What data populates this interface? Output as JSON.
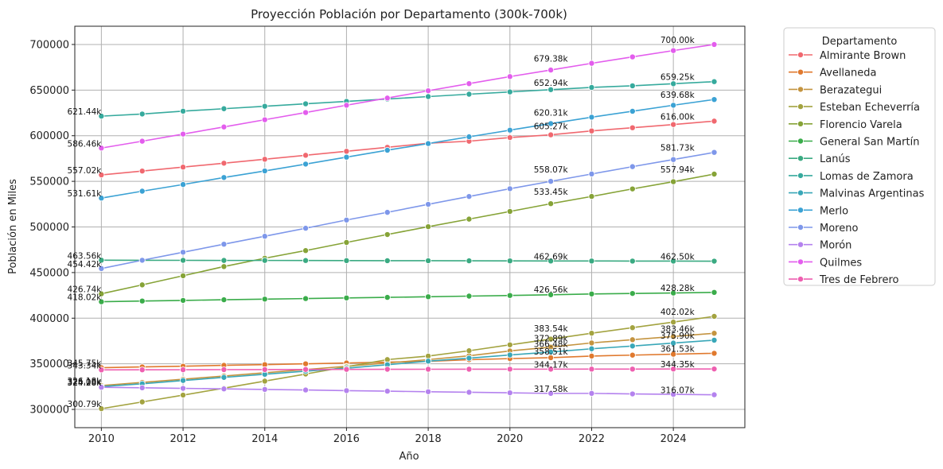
{
  "chart_data": {
    "type": "line",
    "title": "Proyección Población por Departamento (300k-700k)",
    "xlabel": "Año",
    "ylabel": "Población en Miles",
    "xlim": [
      2009.35,
      2025.75
    ],
    "ylim": [
      280000,
      720000
    ],
    "xticks": [
      2010,
      2012,
      2014,
      2016,
      2018,
      2020,
      2022,
      2024
    ],
    "yticks": [
      300000,
      350000,
      400000,
      450000,
      500000,
      550000,
      600000,
      650000,
      700000
    ],
    "x": [
      2010,
      2011,
      2012,
      2013,
      2014,
      2015,
      2016,
      2017,
      2018,
      2019,
      2020,
      2021,
      2022,
      2023,
      2024,
      2025
    ],
    "grid": true,
    "legend": {
      "title": "Departamento",
      "position": "outside-right"
    },
    "series": [
      {
        "name": "Almirante Brown",
        "color": "#f0686f",
        "values": [
          557020,
          561290,
          565580,
          569890,
          574210,
          578560,
          582930,
          587320,
          591730,
          594000,
          598000,
          601000,
          605270,
          608750,
          612260,
          616000
        ]
      },
      {
        "name": "Avellaneda",
        "color": "#e0792e",
        "values": [
          345750,
          346600,
          347400,
          348300,
          349100,
          350000,
          350900,
          351800,
          352700,
          354500,
          355700,
          356700,
          358510,
          359500,
          360500,
          361530
        ]
      },
      {
        "name": "Berazategui",
        "color": "#c49440",
        "values": [
          326180,
          329600,
          333100,
          336600,
          340200,
          343700,
          347300,
          350900,
          354600,
          358800,
          364100,
          368300,
          372890,
          376400,
          379900,
          383460
        ]
      },
      {
        "name": "Esteban Echeverría",
        "color": "#a3a340",
        "values": [
          300790,
          308200,
          315700,
          323300,
          331000,
          338800,
          346700,
          354600,
          358500,
          364300,
          370800,
          377100,
          383540,
          389600,
          395700,
          402020
        ]
      },
      {
        "name": "Florencio Varela",
        "color": "#86a337",
        "values": [
          426740,
          436500,
          446500,
          456600,
          465700,
          474100,
          483000,
          491700,
          500300,
          508600,
          517000,
          525500,
          533450,
          541700,
          549600,
          557940
        ]
      },
      {
        "name": "General San Martín",
        "color": "#3aac4a",
        "values": [
          418020,
          418800,
          419500,
          420200,
          420900,
          421500,
          422200,
          422800,
          423500,
          424200,
          424900,
          425700,
          426560,
          427100,
          427600,
          428280
        ]
      },
      {
        "name": "Lanús",
        "color": "#3aaa82",
        "values": [
          463560,
          463500,
          463400,
          463300,
          463300,
          463200,
          463100,
          463000,
          463000,
          462900,
          462800,
          462690,
          462690,
          462600,
          462550,
          462500
        ]
      },
      {
        "name": "Lomas de Zamora",
        "color": "#36aa9d",
        "values": [
          621440,
          623800,
          626900,
          629600,
          632300,
          635000,
          637600,
          640200,
          642900,
          645500,
          648000,
          650500,
          652940,
          654700,
          657000,
          659250
        ]
      },
      {
        "name": "Malvinas Argentinas",
        "color": "#39a7b8",
        "values": [
          325000,
          328100,
          331700,
          335100,
          338500,
          341900,
          345200,
          349000,
          352900,
          356200,
          359700,
          362900,
          366480,
          369500,
          372700,
          375900
        ]
      },
      {
        "name": "Merlo",
        "color": "#3ba2d4",
        "values": [
          531610,
          539200,
          546500,
          554200,
          561400,
          568900,
          576500,
          584100,
          591400,
          598800,
          606100,
          613300,
          620310,
          626800,
          633400,
          639680
        ]
      },
      {
        "name": "Moreno",
        "color": "#7e97ea",
        "values": [
          454420,
          463500,
          472300,
          481100,
          489800,
          498600,
          507600,
          516000,
          524800,
          533400,
          541900,
          550000,
          558070,
          566100,
          573900,
          581730
        ]
      },
      {
        "name": "Morón",
        "color": "#b482ee",
        "values": [
          324280,
          323700,
          323100,
          322500,
          321900,
          321300,
          320600,
          320000,
          319400,
          318800,
          318200,
          317580,
          317580,
          317000,
          316500,
          316070
        ]
      },
      {
        "name": "Quilmes",
        "color": "#e35ded",
        "values": [
          586460,
          594000,
          601800,
          609600,
          617500,
          625400,
          633400,
          641300,
          649300,
          657100,
          664800,
          672000,
          679380,
          686400,
          693300,
          700000
        ]
      },
      {
        "name": "Tres de Febrero",
        "color": "#ee5fb0",
        "values": [
          343340,
          343400,
          343500,
          343600,
          343700,
          343800,
          343900,
          344000,
          344050,
          344100,
          344120,
          344150,
          344170,
          344200,
          344280,
          344350
        ]
      }
    ],
    "annotations": [
      {
        "x": 2010,
        "y": 621440,
        "text": "621.44k",
        "align": "end"
      },
      {
        "x": 2010,
        "y": 586460,
        "text": "586.46k",
        "align": "end"
      },
      {
        "x": 2010,
        "y": 557020,
        "text": "557.02k",
        "align": "end"
      },
      {
        "x": 2010,
        "y": 531610,
        "text": "531.61k",
        "align": "end"
      },
      {
        "x": 2010,
        "y": 463560,
        "text": "463.56k",
        "align": "end"
      },
      {
        "x": 2010,
        "y": 454420,
        "text": "454.42k",
        "align": "end"
      },
      {
        "x": 2010,
        "y": 426740,
        "text": "426.74k",
        "align": "end"
      },
      {
        "x": 2010,
        "y": 418020,
        "text": "418.02k",
        "align": "end"
      },
      {
        "x": 2010,
        "y": 345750,
        "text": "345.75k",
        "align": "end"
      },
      {
        "x": 2010,
        "y": 343340,
        "text": "343.34k",
        "align": "end"
      },
      {
        "x": 2010,
        "y": 326180,
        "text": "326.18k",
        "align": "end"
      },
      {
        "x": 2010,
        "y": 325000,
        "text": "325.00k",
        "align": "end"
      },
      {
        "x": 2010,
        "y": 324280,
        "text": "324.28k",
        "align": "end"
      },
      {
        "x": 2010,
        "y": 300790,
        "text": "300.79k",
        "align": "end"
      },
      {
        "x": 2021,
        "y": 679380,
        "text": "679.38k",
        "align": "middle"
      },
      {
        "x": 2021,
        "y": 652940,
        "text": "652.94k",
        "align": "middle"
      },
      {
        "x": 2021,
        "y": 620310,
        "text": "620.31k",
        "align": "middle"
      },
      {
        "x": 2021,
        "y": 605270,
        "text": "605.27k",
        "align": "middle"
      },
      {
        "x": 2021,
        "y": 558070,
        "text": "558.07k",
        "align": "middle"
      },
      {
        "x": 2021,
        "y": 533450,
        "text": "533.45k",
        "align": "middle"
      },
      {
        "x": 2021,
        "y": 462690,
        "text": "462.69k",
        "align": "middle"
      },
      {
        "x": 2021,
        "y": 426560,
        "text": "426.56k",
        "align": "middle"
      },
      {
        "x": 2021,
        "y": 383540,
        "text": "383.54k",
        "align": "middle"
      },
      {
        "x": 2021,
        "y": 372890,
        "text": "372.89k",
        "align": "middle"
      },
      {
        "x": 2021,
        "y": 366480,
        "text": "366.48k",
        "align": "middle"
      },
      {
        "x": 2021,
        "y": 358510,
        "text": "358.51k",
        "align": "middle"
      },
      {
        "x": 2021,
        "y": 344170,
        "text": "344.17k",
        "align": "middle"
      },
      {
        "x": 2021,
        "y": 317580,
        "text": "317.58k",
        "align": "middle"
      },
      {
        "x": 2024.1,
        "y": 700000,
        "text": "700.00k",
        "align": "middle"
      },
      {
        "x": 2024.1,
        "y": 659250,
        "text": "659.25k",
        "align": "middle"
      },
      {
        "x": 2024.1,
        "y": 639680,
        "text": "639.68k",
        "align": "middle"
      },
      {
        "x": 2024.1,
        "y": 616000,
        "text": "616.00k",
        "align": "middle"
      },
      {
        "x": 2024.1,
        "y": 581730,
        "text": "581.73k",
        "align": "middle"
      },
      {
        "x": 2024.1,
        "y": 557940,
        "text": "557.94k",
        "align": "middle"
      },
      {
        "x": 2024.1,
        "y": 462500,
        "text": "462.50k",
        "align": "middle"
      },
      {
        "x": 2024.1,
        "y": 428280,
        "text": "428.28k",
        "align": "middle"
      },
      {
        "x": 2024.1,
        "y": 402020,
        "text": "402.02k",
        "align": "middle"
      },
      {
        "x": 2024.1,
        "y": 383460,
        "text": "383.46k",
        "align": "middle"
      },
      {
        "x": 2024.1,
        "y": 375900,
        "text": "375.90k",
        "align": "middle"
      },
      {
        "x": 2024.1,
        "y": 361530,
        "text": "361.53k",
        "align": "middle"
      },
      {
        "x": 2024.1,
        "y": 344350,
        "text": "344.35k",
        "align": "middle"
      },
      {
        "x": 2024.1,
        "y": 316070,
        "text": "316.07k",
        "align": "middle"
      }
    ]
  }
}
